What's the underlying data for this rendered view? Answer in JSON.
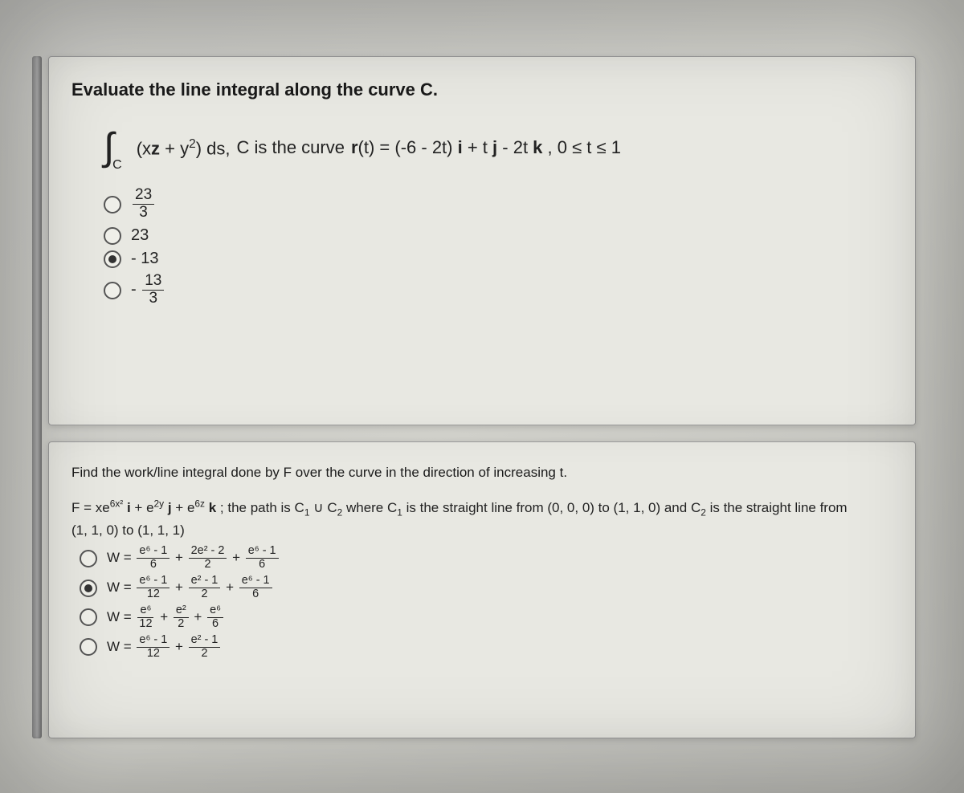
{
  "colors": {
    "page_bg": "#c8c8c4",
    "card_bg": "#e8e8e2",
    "text": "#1a1a1a",
    "border": "#999999",
    "radio_border": "#555555",
    "radio_fill": "#333333"
  },
  "q1": {
    "prompt": "Evaluate the line integral along the curve C.",
    "integral_sub": "C",
    "integrand": "(xz + y²) ds,",
    "curve_label": "C is the curve",
    "rt": "r(t) = (-6 - 2t) i + t j - 2t k , 0 ≤ t ≤ 1",
    "choices": [
      {
        "id": "a",
        "num": "23",
        "den": "3",
        "type": "frac",
        "selected": false
      },
      {
        "id": "b",
        "text": "23",
        "type": "plain",
        "selected": false
      },
      {
        "id": "c",
        "text": "- 13",
        "type": "plain",
        "selected": true
      },
      {
        "id": "d",
        "prefix": "-",
        "num": "13",
        "den": "3",
        "type": "frac_neg",
        "selected": false
      }
    ]
  },
  "q2": {
    "prompt": "Find the work/line integral done by F over the curve in the direction of increasing t.",
    "F_prefix": "F = xe",
    "F_exp1": "6x²",
    "F_mid1": " i + e",
    "F_exp2": "2y",
    "F_mid2": " j + e",
    "F_exp3": "6z",
    "F_suffix": " k ; the path is C₁ ∪ C₂ where C₁ is the straight line from (0, 0, 0) to (1, 1, 0) and C₂ is the straight line from",
    "line2": "(1, 1, 0) to (1, 1, 1)",
    "choices": [
      {
        "id": "a",
        "selected": false,
        "terms": [
          {
            "num": "e⁶ - 1",
            "den": "6"
          },
          "+",
          {
            "num": "2e² - 2",
            "den": "2"
          },
          "+",
          {
            "num": "e⁶ - 1",
            "den": "6"
          }
        ]
      },
      {
        "id": "b",
        "selected": true,
        "terms": [
          {
            "num": "e⁶ - 1",
            "den": "12"
          },
          "+",
          {
            "num": "e² - 1",
            "den": "2"
          },
          "+",
          {
            "num": "e⁶ - 1",
            "den": "6"
          }
        ]
      },
      {
        "id": "c",
        "selected": false,
        "terms": [
          {
            "num": "e⁶",
            "den": "12"
          },
          "+",
          {
            "num": "e²",
            "den": "2"
          },
          "+",
          {
            "num": "e⁶",
            "den": "6"
          }
        ]
      },
      {
        "id": "d",
        "selected": false,
        "terms": [
          {
            "num": "e⁶ - 1",
            "den": "12"
          },
          "+",
          {
            "num": "e² - 1",
            "den": "2"
          }
        ]
      }
    ]
  }
}
